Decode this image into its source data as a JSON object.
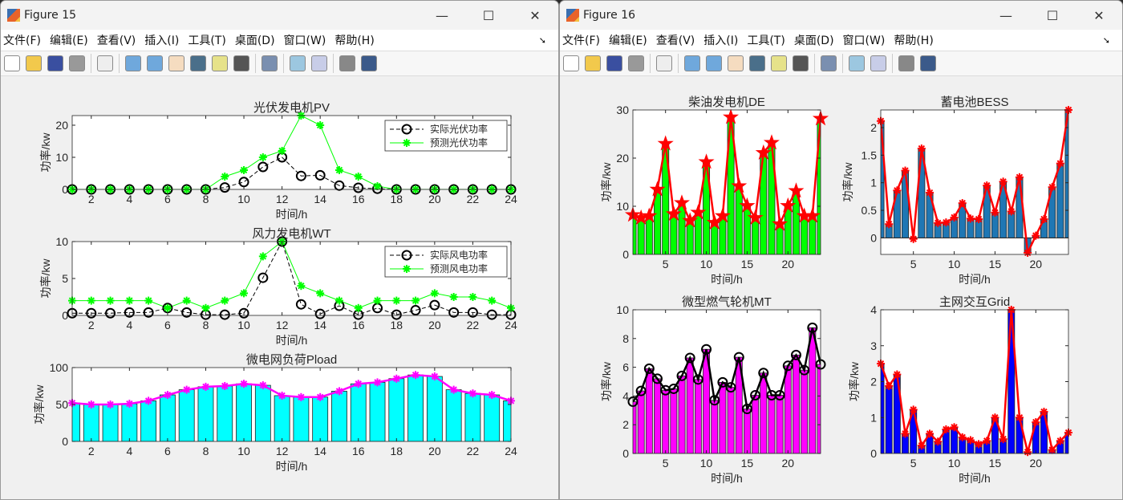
{
  "windows": [
    {
      "title": "Figure 15",
      "menu": [
        "文件(F)",
        "编辑(E)",
        "查看(V)",
        "插入(I)",
        "工具(T)",
        "桌面(D)",
        "窗口(W)",
        "帮助(H)"
      ]
    },
    {
      "title": "Figure 16",
      "menu": [
        "文件(F)",
        "编辑(E)",
        "查看(V)",
        "插入(I)",
        "工具(T)",
        "桌面(D)",
        "窗口(W)",
        "帮助(H)"
      ]
    }
  ],
  "window_controls": {
    "minimize": "—",
    "maximize": "☐",
    "close": "✕"
  },
  "toolbar_icons": [
    "new-file-icon",
    "open-folder-icon",
    "save-icon",
    "print-icon",
    "pointer-icon",
    "zoom-in-icon",
    "zoom-out-icon",
    "pan-hand-icon",
    "rotate-3d-icon",
    "data-cursor-icon",
    "brush-icon",
    "link-plot-icon",
    "colorbar-icon",
    "legend-icon",
    "hide-plot-tools-icon",
    "show-plot-tools-icon"
  ],
  "chart_data": [
    {
      "id": "pv",
      "type": "line",
      "title": "光伏发电机PV",
      "xlabel": "时间/h",
      "ylabel": "功率/kw",
      "xlim": [
        1,
        24
      ],
      "ylim": [
        0,
        23
      ],
      "xticks": [
        2,
        4,
        6,
        8,
        10,
        12,
        14,
        16,
        18,
        20,
        22,
        24
      ],
      "yticks": [
        0,
        10,
        20
      ],
      "x": [
        1,
        2,
        3,
        4,
        5,
        6,
        7,
        8,
        9,
        10,
        11,
        12,
        13,
        14,
        15,
        16,
        17,
        18,
        19,
        20,
        21,
        22,
        23,
        24
      ],
      "series": [
        {
          "name": "实际光伏功率",
          "style": "dash-circle",
          "color": "#000000",
          "values": [
            0,
            0,
            0,
            0,
            0,
            0,
            0,
            0,
            0.6,
            2.3,
            7,
            10,
            4.2,
            4.4,
            1.2,
            0.5,
            0.2,
            0,
            0,
            0,
            0,
            0,
            0,
            0
          ]
        },
        {
          "name": "预测光伏功率",
          "style": "solid-asterisk",
          "color": "#00ff00",
          "values": [
            0,
            0,
            0,
            0,
            0,
            0,
            0,
            0,
            4,
            6,
            10,
            12,
            23,
            20,
            6,
            4,
            1,
            0,
            0,
            0,
            0,
            0,
            0,
            0
          ]
        }
      ],
      "legend": "top-right"
    },
    {
      "id": "wt",
      "type": "line",
      "title": "风力发电机WT",
      "xlabel": "时间/h",
      "ylabel": "功率/kw",
      "xlim": [
        1,
        24
      ],
      "ylim": [
        0,
        10
      ],
      "xticks": [
        2,
        4,
        6,
        8,
        10,
        12,
        14,
        16,
        18,
        20,
        22,
        24
      ],
      "yticks": [
        0,
        5,
        10
      ],
      "x": [
        1,
        2,
        3,
        4,
        5,
        6,
        7,
        8,
        9,
        10,
        11,
        12,
        13,
        14,
        15,
        16,
        17,
        18,
        19,
        20,
        21,
        22,
        23,
        24
      ],
      "series": [
        {
          "name": "实际风电功率",
          "style": "dash-circle",
          "color": "#000000",
          "values": [
            0.3,
            0.3,
            0.3,
            0.4,
            0.4,
            1,
            0.4,
            0.1,
            0.1,
            0.3,
            5.1,
            10,
            1.5,
            0.2,
            1.3,
            0.1,
            1,
            0.1,
            0.7,
            1.4,
            0.4,
            0.4,
            0.1,
            0.1
          ]
        },
        {
          "name": "预测风电功率",
          "style": "solid-asterisk",
          "color": "#00ff00",
          "values": [
            2,
            2,
            2,
            2,
            2,
            1,
            2,
            1,
            2,
            3,
            8,
            10,
            4,
            3,
            2,
            1,
            2,
            2,
            2,
            3,
            2.5,
            2.5,
            2,
            1
          ]
        }
      ],
      "legend": "top-right"
    },
    {
      "id": "pload",
      "type": "bar",
      "title": "微电网负荷Pload",
      "xlabel": "时间/h",
      "ylabel": "功率/kw",
      "xlim": [
        1,
        24
      ],
      "ylim": [
        0,
        100
      ],
      "xticks": [
        2,
        4,
        6,
        8,
        10,
        12,
        14,
        16,
        18,
        20,
        22,
        24
      ],
      "yticks": [
        0,
        50,
        100
      ],
      "x": [
        1,
        2,
        3,
        4,
        5,
        6,
        7,
        8,
        9,
        10,
        11,
        12,
        13,
        14,
        15,
        16,
        17,
        18,
        19,
        20,
        21,
        22,
        23,
        24
      ],
      "bar_color": "#00ffff",
      "line_color": "#ff00ff",
      "marker": "asterisk",
      "values": [
        52,
        50,
        50,
        51,
        55,
        63,
        70,
        74,
        75,
        78,
        76,
        62,
        60,
        60,
        68,
        78,
        80,
        85,
        90,
        88,
        70,
        65,
        63,
        55
      ]
    },
    {
      "id": "de",
      "type": "bar",
      "title": "柴油发电机DE",
      "xlabel": "时间/h",
      "ylabel": "功率/kw",
      "xlim": [
        1,
        24
      ],
      "ylim": [
        0,
        30
      ],
      "xticks": [
        5,
        10,
        15,
        20
      ],
      "yticks": [
        0,
        10,
        20,
        30
      ],
      "x": [
        1,
        2,
        3,
        4,
        5,
        6,
        7,
        8,
        9,
        10,
        11,
        12,
        13,
        14,
        15,
        16,
        17,
        18,
        19,
        20,
        21,
        22,
        23,
        24
      ],
      "bar_color": "#00ff00",
      "line_color": "#ff0000",
      "marker": "star",
      "values": [
        8.2,
        7.6,
        8,
        13.5,
        23,
        8.4,
        10.7,
        7,
        8.7,
        19.2,
        6.6,
        8,
        28.5,
        14.2,
        10.1,
        7.6,
        21.1,
        23.2,
        6.3,
        10.1,
        13.2,
        8,
        8,
        28.2
      ]
    },
    {
      "id": "bess",
      "type": "bar",
      "title": "蓄电池BESS",
      "xlabel": "时间/h",
      "ylabel": "功率/kw",
      "xlim": [
        1,
        24
      ],
      "ylim": [
        -0.3,
        2.32
      ],
      "xticks": [
        5,
        10,
        15,
        20
      ],
      "yticks": [
        0,
        0.5,
        1,
        1.5,
        2
      ],
      "x": [
        1,
        2,
        3,
        4,
        5,
        6,
        7,
        8,
        9,
        10,
        11,
        12,
        13,
        14,
        15,
        16,
        17,
        18,
        19,
        20,
        21,
        22,
        23,
        24
      ],
      "bar_color": "#1f77b4",
      "line_color": "#ff0000",
      "marker": "asterisk",
      "values": [
        2.12,
        0.25,
        0.86,
        1.22,
        -0.02,
        1.62,
        0.82,
        0.27,
        0.28,
        0.37,
        0.63,
        0.35,
        0.34,
        0.95,
        0.46,
        1.02,
        0.48,
        1.1,
        -0.27,
        0.04,
        0.34,
        0.92,
        1.35,
        2.32
      ]
    },
    {
      "id": "mt",
      "type": "bar",
      "title": "微型燃气轮机MT",
      "xlabel": "时间/h",
      "ylabel": "功率/kw",
      "xlim": [
        1,
        24
      ],
      "ylim": [
        0,
        10
      ],
      "xticks": [
        5,
        10,
        15,
        20
      ],
      "yticks": [
        0,
        2,
        4,
        6,
        8,
        10
      ],
      "x": [
        1,
        2,
        3,
        4,
        5,
        6,
        7,
        8,
        9,
        10,
        11,
        12,
        13,
        14,
        15,
        16,
        17,
        18,
        19,
        20,
        21,
        22,
        23,
        24
      ],
      "bar_color": "#ff00ff",
      "line_color": "#000000",
      "marker": "circle",
      "values": [
        3.6,
        4.35,
        5.9,
        5.2,
        4.4,
        4.5,
        5.4,
        6.65,
        5.15,
        7.25,
        3.7,
        4.95,
        4.6,
        6.7,
        3.1,
        4.05,
        5.6,
        4.05,
        4.05,
        6.1,
        6.85,
        5.8,
        8.75,
        6.2
      ]
    },
    {
      "id": "grid",
      "type": "bar",
      "title": "主网交互Grid",
      "xlabel": "时间/h",
      "ylabel": "功率/kw",
      "xlim": [
        1,
        24
      ],
      "ylim": [
        0,
        4
      ],
      "xticks": [
        5,
        10,
        15,
        20
      ],
      "yticks": [
        0,
        1,
        2,
        3,
        4
      ],
      "x": [
        1,
        2,
        3,
        4,
        5,
        6,
        7,
        8,
        9,
        10,
        11,
        12,
        13,
        14,
        15,
        16,
        17,
        18,
        19,
        20,
        21,
        22,
        23,
        24
      ],
      "bar_color": "#0000ff",
      "line_color": "#ff0000",
      "marker": "asterisk",
      "values": [
        2.5,
        1.88,
        2.2,
        0.55,
        1.22,
        0.22,
        0.55,
        0.33,
        0.67,
        0.73,
        0.45,
        0.37,
        0.26,
        0.35,
        1.0,
        0.4,
        4.0,
        1.0,
        0.04,
        0.87,
        1.16,
        0.1,
        0.35,
        0.58
      ]
    }
  ]
}
